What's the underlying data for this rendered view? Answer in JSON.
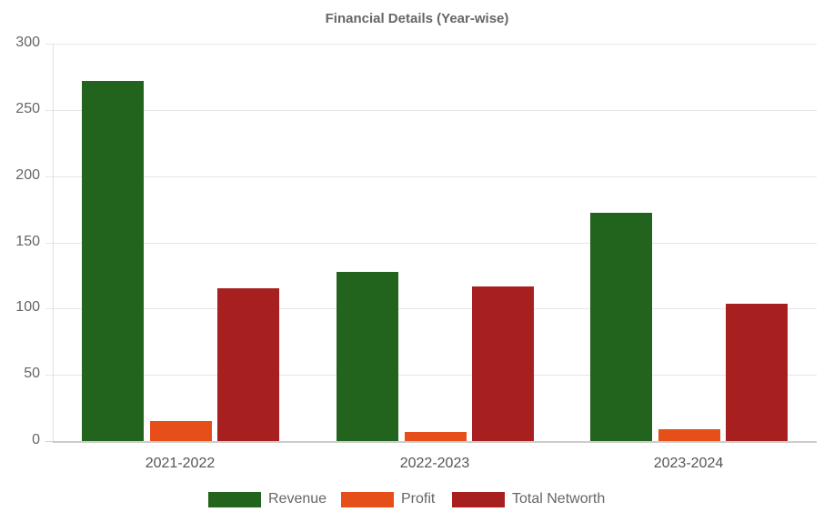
{
  "chart_data": {
    "type": "bar",
    "title": "Financial Details (Year-wise)",
    "xlabel": "",
    "ylabel": "",
    "ylim": [
      0,
      300
    ],
    "yticks": [
      0,
      50,
      100,
      150,
      200,
      250,
      300
    ],
    "grid": true,
    "legend_position": "bottom",
    "categories": [
      "2021-2022",
      "2022-2023",
      "2023-2024"
    ],
    "series": [
      {
        "name": "Revenue",
        "color": "#22631e",
        "values": [
          272,
          128,
          172
        ]
      },
      {
        "name": "Profit",
        "color": "#e64e1a",
        "values": [
          15,
          7,
          9
        ]
      },
      {
        "name": "Total Networth",
        "color": "#a81f20",
        "values": [
          115,
          117,
          104
        ]
      }
    ]
  },
  "labels": {
    "title": "Financial Details (Year-wise)",
    "yticks": [
      "0",
      "50",
      "100",
      "150",
      "200",
      "250",
      "300"
    ],
    "categories": [
      "2021-2022",
      "2022-2023",
      "2023-2024"
    ],
    "legend": [
      "Revenue",
      "Profit",
      "Total Networth"
    ]
  }
}
